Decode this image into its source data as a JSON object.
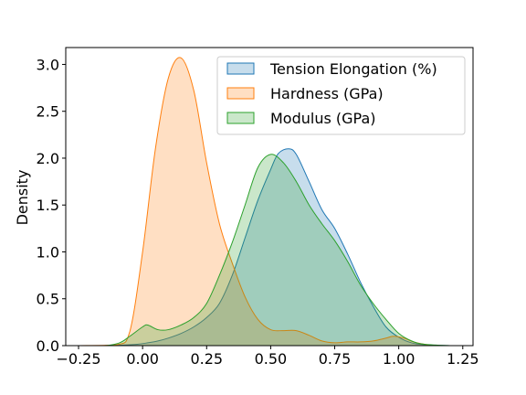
{
  "chart_data": {
    "type": "area",
    "subtype": "kde",
    "title": "",
    "xlabel": "",
    "ylabel": "Density",
    "xlim": [
      -0.3,
      1.29
    ],
    "ylim": [
      0,
      3.18
    ],
    "x_ticks": [
      -0.25,
      0.0,
      0.25,
      0.5,
      0.75,
      1.0,
      1.25
    ],
    "x_tick_labels": [
      "−0.25",
      "0.00",
      "0.25",
      "0.50",
      "0.75",
      "1.00",
      "1.25"
    ],
    "y_ticks": [
      0.0,
      0.5,
      1.0,
      1.5,
      2.0,
      2.5,
      3.0
    ],
    "y_tick_labels": [
      "0.0",
      "0.5",
      "1.0",
      "1.5",
      "2.0",
      "2.5",
      "3.0"
    ],
    "grid": false,
    "legend_position": "top-right",
    "series": [
      {
        "name": "Tension Elongation (%)",
        "color": "#1f77b4",
        "x": [
          -0.25,
          -0.15,
          -0.08,
          -0.02,
          0.02,
          0.06,
          0.1,
          0.15,
          0.2,
          0.25,
          0.3,
          0.35,
          0.4,
          0.45,
          0.5,
          0.53,
          0.57,
          0.6,
          0.65,
          0.7,
          0.75,
          0.8,
          0.85,
          0.9,
          0.95,
          1.0,
          1.05,
          1.1,
          1.2,
          1.25
        ],
        "y": [
          0.0,
          0.0,
          0.005,
          0.015,
          0.03,
          0.05,
          0.08,
          0.13,
          0.2,
          0.3,
          0.45,
          0.75,
          1.15,
          1.55,
          1.88,
          2.05,
          2.1,
          2.04,
          1.75,
          1.45,
          1.25,
          0.98,
          0.68,
          0.42,
          0.2,
          0.09,
          0.03,
          0.01,
          0.0,
          0.0
        ]
      },
      {
        "name": "Hardness (GPa)",
        "color": "#ff7f0e",
        "x": [
          -0.25,
          -0.1,
          -0.05,
          0.0,
          0.05,
          0.1,
          0.15,
          0.2,
          0.25,
          0.3,
          0.35,
          0.4,
          0.45,
          0.5,
          0.55,
          0.6,
          0.65,
          0.7,
          0.75,
          0.8,
          0.85,
          0.9,
          0.95,
          0.98,
          1.02,
          1.07,
          1.15,
          1.25
        ],
        "y": [
          0.0,
          0.01,
          0.15,
          1.0,
          2.1,
          2.85,
          3.07,
          2.72,
          1.95,
          1.3,
          0.88,
          0.52,
          0.28,
          0.17,
          0.16,
          0.16,
          0.11,
          0.05,
          0.03,
          0.04,
          0.04,
          0.05,
          0.08,
          0.1,
          0.08,
          0.03,
          0.0,
          0.0
        ]
      },
      {
        "name": "Modulus (GPa)",
        "color": "#2ca02c",
        "x": [
          -0.25,
          -0.15,
          -0.09,
          -0.05,
          0.0,
          0.02,
          0.06,
          0.1,
          0.15,
          0.2,
          0.25,
          0.3,
          0.35,
          0.4,
          0.45,
          0.5,
          0.55,
          0.6,
          0.65,
          0.7,
          0.75,
          0.8,
          0.85,
          0.9,
          0.95,
          1.0,
          1.05,
          1.1,
          1.2,
          1.25
        ],
        "y": [
          0.0,
          0.0,
          0.03,
          0.1,
          0.2,
          0.22,
          0.17,
          0.17,
          0.22,
          0.3,
          0.45,
          0.75,
          1.1,
          1.5,
          1.9,
          2.04,
          1.95,
          1.75,
          1.5,
          1.3,
          1.12,
          0.9,
          0.65,
          0.45,
          0.28,
          0.13,
          0.05,
          0.015,
          0.0,
          0.0
        ]
      }
    ]
  }
}
